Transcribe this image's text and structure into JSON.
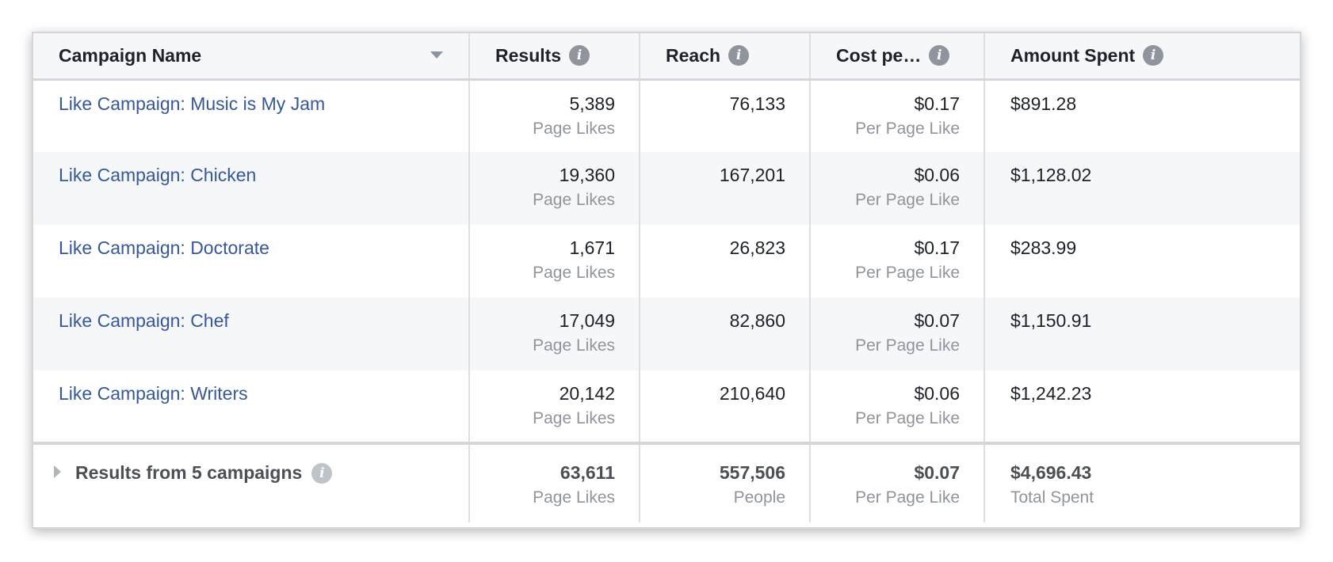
{
  "columns": {
    "name": "Campaign Name",
    "results": "Results",
    "reach": "Reach",
    "cost": "Cost pe…",
    "amount": "Amount Spent"
  },
  "rows": [
    {
      "name": "Like Campaign: Music is My Jam",
      "results": "5,389",
      "results_unit": "Page Likes",
      "reach": "76,133",
      "cost": "$0.17",
      "cost_unit": "Per Page Like",
      "amount": "$891.28"
    },
    {
      "name": "Like Campaign: Chicken",
      "results": "19,360",
      "results_unit": "Page Likes",
      "reach": "167,201",
      "cost": "$0.06",
      "cost_unit": "Per Page Like",
      "amount": "$1,128.02"
    },
    {
      "name": "Like Campaign: Doctorate",
      "results": "1,671",
      "results_unit": "Page Likes",
      "reach": "26,823",
      "cost": "$0.17",
      "cost_unit": "Per Page Like",
      "amount": "$283.99"
    },
    {
      "name": "Like Campaign: Chef",
      "results": "17,049",
      "results_unit": "Page Likes",
      "reach": "82,860",
      "cost": "$0.07",
      "cost_unit": "Per Page Like",
      "amount": "$1,150.91"
    },
    {
      "name": "Like Campaign: Writers",
      "results": "20,142",
      "results_unit": "Page Likes",
      "reach": "210,640",
      "cost": "$0.06",
      "cost_unit": "Per Page Like",
      "amount": "$1,242.23"
    }
  ],
  "summary": {
    "label": "Results from 5 campaigns",
    "results": "63,611",
    "results_unit": "Page Likes",
    "reach": "557,506",
    "reach_unit": "People",
    "cost": "$0.07",
    "cost_unit": "Per Page Like",
    "amount": "$4,696.43",
    "amount_unit": "Total Spent"
  },
  "icons": {
    "info": "info-icon",
    "sort": "sort-down-icon",
    "expand": "expand-triangle-icon"
  },
  "colors": {
    "link": "#365899",
    "muted": "#90949c",
    "header_bg": "#f6f7f9",
    "border": "#dddfe2"
  }
}
